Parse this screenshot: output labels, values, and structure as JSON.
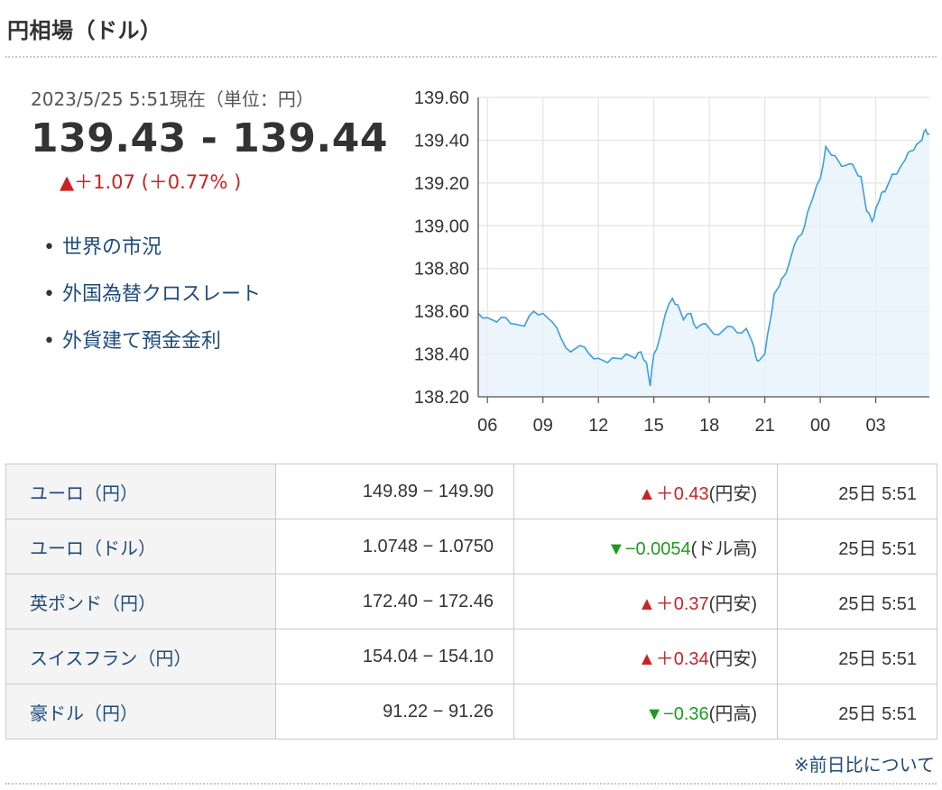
{
  "header": {
    "title": "円相場（ドル）"
  },
  "quote": {
    "asof": "2023/5/25 5:51現在（単位：円）",
    "price": "139.43 - 139.44",
    "change": "▲＋1.07 (＋0.77% )"
  },
  "links": [
    {
      "label": "世界の市況"
    },
    {
      "label": "外国為替クロスレート"
    },
    {
      "label": "外貨建て預金金利"
    }
  ],
  "chart_data": {
    "type": "line",
    "title": "",
    "xlabel": "",
    "ylabel": "",
    "x_ticks": [
      "06",
      "09",
      "12",
      "15",
      "18",
      "21",
      "00",
      "03"
    ],
    "x_range_hours": [
      5.5,
      29.9
    ],
    "ylim": [
      138.2,
      139.6
    ],
    "y_ticks": [
      "139.60",
      "139.40",
      "139.20",
      "139.00",
      "138.80",
      "138.60",
      "138.40",
      "138.20"
    ],
    "grid": true,
    "line_color": "#3b9fdc",
    "fill_color": "#e6f1fa",
    "series": [
      {
        "x": [
          5.5,
          6.0,
          6.5,
          7.0,
          7.5,
          8.0,
          8.5,
          9.0,
          9.5,
          10.0,
          10.5,
          11.0,
          11.5,
          12.0,
          12.5,
          13.0,
          13.5,
          14.0,
          14.3,
          14.6,
          14.8,
          15.0,
          15.3,
          15.6,
          16.0,
          16.3,
          16.6,
          17.0,
          17.3,
          17.6,
          18.0,
          18.5,
          19.0,
          19.5,
          20.0,
          20.3,
          20.5,
          20.7,
          21.0,
          21.3,
          21.5,
          21.8,
          22.0,
          22.3,
          22.6,
          23.0,
          23.3,
          23.6,
          24.0,
          24.3,
          24.6,
          25.0,
          25.3,
          25.6,
          25.9,
          26.2,
          26.5,
          26.8,
          27.0,
          27.2,
          27.4,
          27.6,
          27.8,
          28.0,
          28.3,
          28.6,
          28.9,
          29.2,
          29.5,
          29.7,
          29.9
        ],
        "y": [
          138.59,
          138.57,
          138.55,
          138.57,
          138.54,
          138.53,
          138.6,
          138.59,
          138.55,
          138.47,
          138.41,
          138.44,
          138.4,
          138.38,
          138.36,
          138.38,
          138.4,
          138.38,
          138.41,
          138.36,
          138.25,
          138.4,
          138.47,
          138.58,
          138.66,
          138.63,
          138.56,
          138.59,
          138.52,
          138.54,
          138.52,
          138.49,
          138.53,
          138.5,
          138.52,
          138.46,
          138.39,
          138.37,
          138.4,
          138.56,
          138.68,
          138.72,
          138.76,
          138.82,
          138.91,
          138.96,
          139.06,
          139.13,
          139.22,
          139.37,
          139.33,
          139.3,
          139.28,
          139.29,
          139.26,
          139.23,
          139.07,
          139.02,
          139.08,
          139.12,
          139.16,
          139.18,
          139.22,
          139.24,
          139.27,
          139.31,
          139.35,
          139.38,
          139.4,
          139.45,
          139.43
        ]
      }
    ]
  },
  "table": {
    "rows": [
      {
        "name": "ユーロ（円）",
        "rate": "149.89 − 149.90",
        "arrow": "▲",
        "change": "＋0.43",
        "note": "(円安)",
        "dir": "up",
        "time": "25日 5:51"
      },
      {
        "name": "ユーロ（ドル）",
        "rate": "1.0748 − 1.0750",
        "arrow": "▼",
        "change": "−0.0054",
        "note": "(ドル高)",
        "dir": "down",
        "time": "25日 5:51"
      },
      {
        "name": "英ポンド（円）",
        "rate": "172.40 − 172.46",
        "arrow": "▲",
        "change": "＋0.37",
        "note": "(円安)",
        "dir": "up",
        "time": "25日 5:51"
      },
      {
        "name": "スイスフラン（円）",
        "rate": "154.04 − 154.10",
        "arrow": "▲",
        "change": "＋0.34",
        "note": "(円安)",
        "dir": "up",
        "time": "25日 5:51"
      },
      {
        "name": "豪ドル（円）",
        "rate": "91.22 − 91.26",
        "arrow": "▼",
        "change": "−0.36",
        "note": "(円高)",
        "dir": "down",
        "time": "25日 5:51"
      }
    ]
  },
  "footer": {
    "note": "※前日比について"
  }
}
